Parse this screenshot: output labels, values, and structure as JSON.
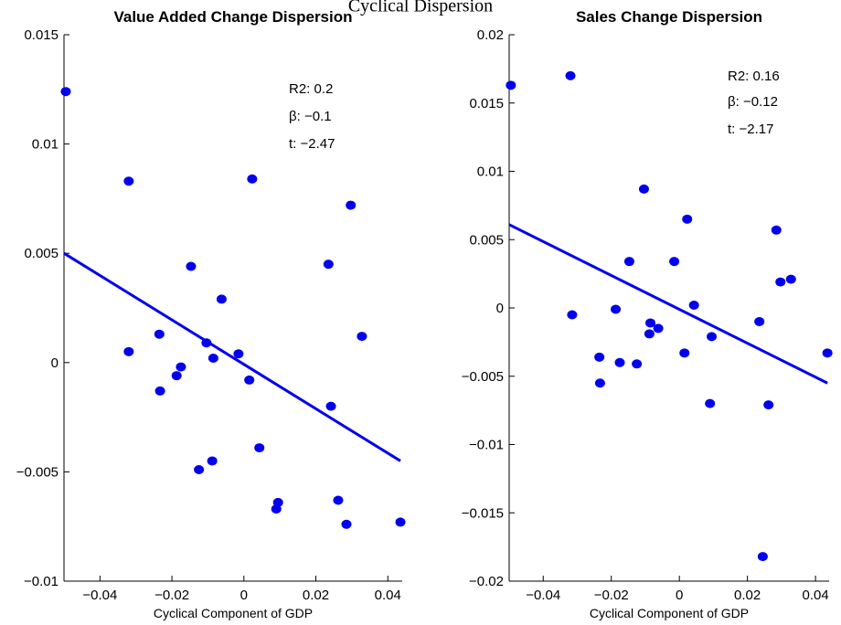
{
  "figure": {
    "suptitle": "Cyclical Dispersion"
  },
  "chart_data": [
    {
      "type": "scatter",
      "title": "Value Added Change Dispersion",
      "xlabel": "Cyclical Component of GDP",
      "ylabel": "",
      "xlim": [
        -0.05,
        0.044
      ],
      "ylim": [
        -0.01,
        0.015
      ],
      "xticks": [
        -0.04,
        -0.02,
        0,
        0.02,
        0.04
      ],
      "xtick_labels": [
        "−0.04",
        "−0.02",
        "0",
        "0.02",
        "0.04"
      ],
      "yticks": [
        -0.01,
        -0.005,
        0,
        0.005,
        0.01,
        0.015
      ],
      "ytick_labels": [
        "−0.01",
        "−0.005",
        "0",
        "0.005",
        "0.01",
        "0.015"
      ],
      "color": "#0000ee",
      "points": [
        {
          "x": -0.0495,
          "y": 0.0124
        },
        {
          "x": -0.032,
          "y": 0.0083
        },
        {
          "x": -0.032,
          "y": 0.0005
        },
        {
          "x": -0.0235,
          "y": 0.0013
        },
        {
          "x": -0.0233,
          "y": -0.0013
        },
        {
          "x": -0.0187,
          "y": -0.0006
        },
        {
          "x": -0.0175,
          "y": -0.0002
        },
        {
          "x": -0.0147,
          "y": 0.0044
        },
        {
          "x": -0.0125,
          "y": -0.0049
        },
        {
          "x": -0.0104,
          "y": 0.0009
        },
        {
          "x": -0.0088,
          "y": -0.0045
        },
        {
          "x": -0.0085,
          "y": 0.0002
        },
        {
          "x": -0.0062,
          "y": 0.0029
        },
        {
          "x": -0.0015,
          "y": 0.0004
        },
        {
          "x": 0.0015,
          "y": -0.0008
        },
        {
          "x": 0.0023,
          "y": 0.0084
        },
        {
          "x": 0.0043,
          "y": -0.0039
        },
        {
          "x": 0.009,
          "y": -0.0067
        },
        {
          "x": 0.0095,
          "y": -0.0064
        },
        {
          "x": 0.0235,
          "y": 0.0045
        },
        {
          "x": 0.0242,
          "y": -0.002
        },
        {
          "x": 0.0262,
          "y": -0.0063
        },
        {
          "x": 0.0285,
          "y": -0.0074
        },
        {
          "x": 0.0297,
          "y": 0.0072
        },
        {
          "x": 0.0328,
          "y": 0.0012
        },
        {
          "x": 0.0435,
          "y": -0.0073
        }
      ],
      "fit_line": {
        "x": [
          -0.05,
          0.0435
        ],
        "y": [
          0.005,
          -0.0045
        ]
      },
      "annotations": [
        "R2: 0.2",
        "β: −0.1",
        "t: −2.47"
      ]
    },
    {
      "type": "scatter",
      "title": "Sales Change Dispersion",
      "xlabel": "Cyclical Component of GDP",
      "ylabel": "",
      "xlim": [
        -0.05,
        0.044
      ],
      "ylim": [
        -0.02,
        0.02
      ],
      "xticks": [
        -0.04,
        -0.02,
        0,
        0.02,
        0.04
      ],
      "xtick_labels": [
        "−0.04",
        "−0.02",
        "0",
        "0.02",
        "0.04"
      ],
      "yticks": [
        -0.02,
        -0.015,
        -0.01,
        -0.005,
        0,
        0.005,
        0.01,
        0.015,
        0.02
      ],
      "ytick_labels": [
        "−0.02",
        "−0.015",
        "−0.01",
        "−0.005",
        "0",
        "0.005",
        "0.01",
        "0.015",
        "0.02"
      ],
      "color": "#0000ee",
      "points": [
        {
          "x": -0.0495,
          "y": 0.0163
        },
        {
          "x": -0.032,
          "y": 0.017
        },
        {
          "x": -0.0315,
          "y": -0.0005
        },
        {
          "x": -0.0235,
          "y": -0.0036
        },
        {
          "x": -0.0233,
          "y": -0.0055
        },
        {
          "x": -0.0187,
          "y": -0.0001
        },
        {
          "x": -0.0175,
          "y": -0.004
        },
        {
          "x": -0.0147,
          "y": 0.0034
        },
        {
          "x": -0.0125,
          "y": -0.0041
        },
        {
          "x": -0.0104,
          "y": 0.0087
        },
        {
          "x": -0.0088,
          "y": -0.0019
        },
        {
          "x": -0.0085,
          "y": -0.0011
        },
        {
          "x": -0.0062,
          "y": -0.0015
        },
        {
          "x": -0.0015,
          "y": 0.0034
        },
        {
          "x": 0.0015,
          "y": -0.0033
        },
        {
          "x": 0.0023,
          "y": 0.0065
        },
        {
          "x": 0.0043,
          "y": 0.0002
        },
        {
          "x": 0.009,
          "y": -0.007
        },
        {
          "x": 0.0095,
          "y": -0.0021
        },
        {
          "x": 0.0235,
          "y": -0.001
        },
        {
          "x": 0.0245,
          "y": -0.0182
        },
        {
          "x": 0.0262,
          "y": -0.0071
        },
        {
          "x": 0.0285,
          "y": 0.0057
        },
        {
          "x": 0.0297,
          "y": 0.0019
        },
        {
          "x": 0.0328,
          "y": 0.0021
        },
        {
          "x": 0.0435,
          "y": -0.0033
        }
      ],
      "fit_line": {
        "x": [
          -0.05,
          0.0435
        ],
        "y": [
          0.0061,
          -0.0055
        ]
      },
      "annotations": [
        "R2: 0.16",
        "β: −0.12",
        "t: −2.17"
      ]
    }
  ]
}
